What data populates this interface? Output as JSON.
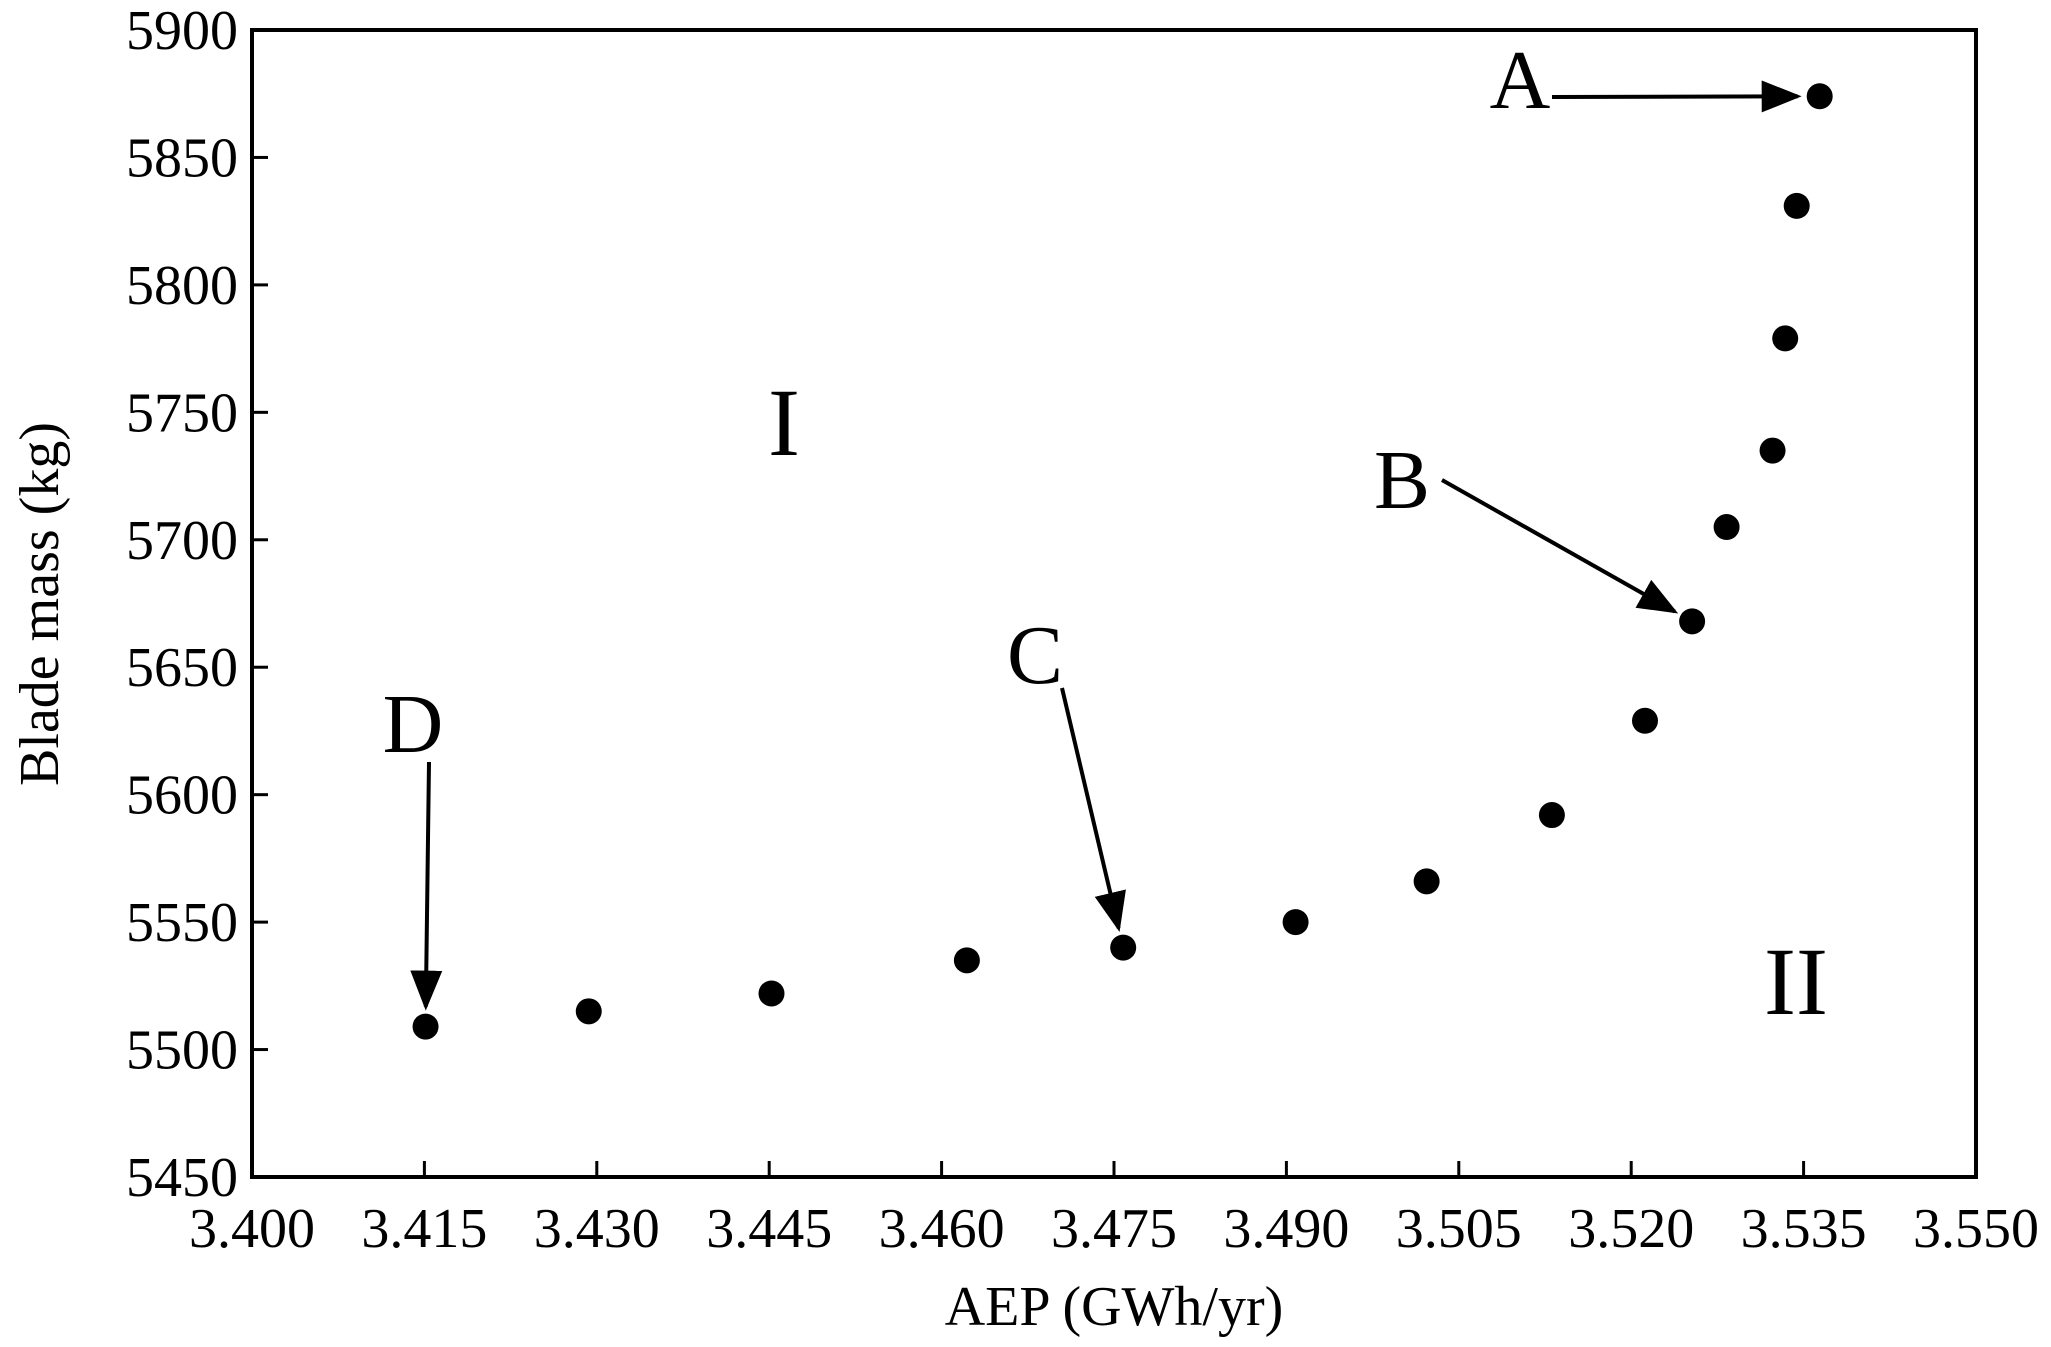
{
  "chart_data": {
    "type": "scatter",
    "xlabel": "AEP (GWh/yr)",
    "ylabel": "Blade mass (kg)",
    "xlim": [
      3.4,
      3.55
    ],
    "ylim": [
      5450,
      5900
    ],
    "x_ticks": [
      "3.400",
      "3.415",
      "3.430",
      "3.445",
      "3.460",
      "3.475",
      "3.490",
      "3.505",
      "3.520",
      "3.535",
      "3.550"
    ],
    "y_ticks": [
      "5450",
      "5500",
      "5550",
      "5600",
      "5650",
      "5700",
      "5750",
      "5800",
      "5850",
      "5900"
    ],
    "grid": false,
    "legend": "none",
    "series": [
      {
        "points": [
          {
            "x": 3.4151,
            "y": 5509
          },
          {
            "x": 3.4293,
            "y": 5515
          },
          {
            "x": 3.4452,
            "y": 5522
          },
          {
            "x": 3.4622,
            "y": 5535
          },
          {
            "x": 3.4758,
            "y": 5540
          },
          {
            "x": 3.4908,
            "y": 5550
          },
          {
            "x": 3.5022,
            "y": 5566
          },
          {
            "x": 3.5131,
            "y": 5592
          },
          {
            "x": 3.5212,
            "y": 5629
          },
          {
            "x": 3.5253,
            "y": 5668
          },
          {
            "x": 3.5283,
            "y": 5705
          },
          {
            "x": 3.5323,
            "y": 5735
          },
          {
            "x": 3.5334,
            "y": 5779
          },
          {
            "x": 3.5344,
            "y": 5831
          },
          {
            "x": 3.5364,
            "y": 5874
          }
        ]
      }
    ],
    "annotations": [
      {
        "label": "A",
        "point_index": 14
      },
      {
        "label": "B",
        "point_index": 9
      },
      {
        "label": "C",
        "point_index": 4
      },
      {
        "label": "D",
        "point_index": 0
      }
    ],
    "region_labels": [
      "I",
      "II"
    ]
  }
}
